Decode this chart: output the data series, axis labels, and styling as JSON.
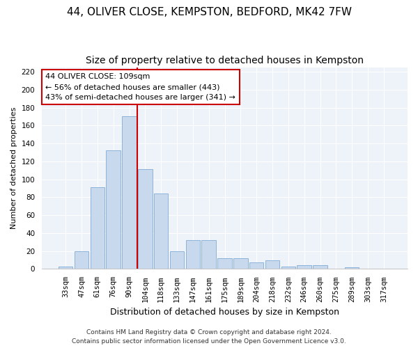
{
  "title": "44, OLIVER CLOSE, KEMPSTON, BEDFORD, MK42 7FW",
  "subtitle": "Size of property relative to detached houses in Kempston",
  "xlabel": "Distribution of detached houses by size in Kempston",
  "ylabel": "Number of detached properties",
  "categories": [
    "33sqm",
    "47sqm",
    "61sqm",
    "76sqm",
    "90sqm",
    "104sqm",
    "118sqm",
    "133sqm",
    "147sqm",
    "161sqm",
    "175sqm",
    "189sqm",
    "204sqm",
    "218sqm",
    "232sqm",
    "246sqm",
    "260sqm",
    "275sqm",
    "289sqm",
    "303sqm",
    "317sqm"
  ],
  "values": [
    3,
    20,
    91,
    132,
    170,
    111,
    84,
    20,
    32,
    32,
    12,
    12,
    7,
    10,
    3,
    4,
    4,
    0,
    2,
    0,
    0
  ],
  "bar_color": "#c8d9ed",
  "bar_edge_color": "#8cb3d9",
  "property_line_x": 4.5,
  "annotation_title": "44 OLIVER CLOSE: 109sqm",
  "annotation_line1": "← 56% of detached houses are smaller (443)",
  "annotation_line2": "43% of semi-detached houses are larger (341) →",
  "annotation_box_color": "#ffffff",
  "annotation_box_edge": "#cc0000",
  "line_color": "#cc0000",
  "ylim": [
    0,
    225
  ],
  "yticks": [
    0,
    20,
    40,
    60,
    80,
    100,
    120,
    140,
    160,
    180,
    200,
    220
  ],
  "footer1": "Contains HM Land Registry data © Crown copyright and database right 2024.",
  "footer2": "Contains public sector information licensed under the Open Government Licence v3.0.",
  "bg_color": "#eef2f9",
  "grid_color": "#ffffff",
  "title_fontsize": 11,
  "subtitle_fontsize": 10,
  "ylabel_fontsize": 8,
  "xlabel_fontsize": 9,
  "tick_fontsize": 7.5,
  "footer_fontsize": 6.5
}
